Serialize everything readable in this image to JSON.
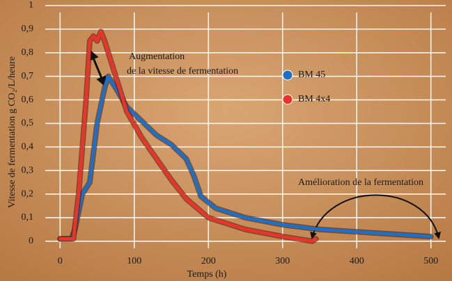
{
  "chart_data": {
    "type": "line",
    "y_label": "Vitesse de fermentation g CO₂/L/heure",
    "x_label": "Temps (h)",
    "xlim": [
      -20,
      520
    ],
    "ylim": [
      -0.03,
      1
    ],
    "xticks": [
      0,
      100,
      200,
      300,
      400,
      500
    ],
    "yticks": [
      0,
      {
        "value": 0.1,
        "label": "0,1"
      },
      {
        "value": 0.2,
        "label": "0,2"
      },
      {
        "value": 0.3,
        "label": "0,3"
      },
      {
        "value": 0.4,
        "label": "0,4"
      },
      {
        "value": 0.5,
        "label": "0,5"
      },
      {
        "value": 0.6,
        "label": "0,6"
      },
      {
        "value": 0.7,
        "label": "0,7"
      },
      {
        "value": 0.8,
        "label": "0,8"
      },
      {
        "value": 0.9,
        "label": "0,9"
      },
      1
    ],
    "grid": true,
    "series": [
      {
        "name": "BM 45",
        "color": "#1f6fc4",
        "x": [
          0,
          15,
          20,
          30,
          40,
          50,
          60,
          65,
          75,
          90,
          110,
          130,
          150,
          170,
          180,
          190,
          210,
          250,
          300,
          350,
          400,
          450,
          500
        ],
        "values": [
          0.01,
          0.01,
          0.05,
          0.2,
          0.25,
          0.5,
          0.65,
          0.7,
          0.65,
          0.57,
          0.51,
          0.45,
          0.41,
          0.35,
          0.28,
          0.19,
          0.14,
          0.1,
          0.07,
          0.05,
          0.04,
          0.03,
          0.02
        ]
      },
      {
        "name": "BM 4x4",
        "color": "#e8352b",
        "x": [
          0,
          18,
          25,
          35,
          40,
          45,
          50,
          55,
          60,
          75,
          90,
          110,
          130,
          150,
          170,
          200,
          250,
          300,
          340,
          345
        ],
        "values": [
          0.01,
          0.01,
          0.2,
          0.6,
          0.85,
          0.87,
          0.85,
          0.89,
          0.85,
          0.7,
          0.55,
          0.44,
          0.35,
          0.26,
          0.18,
          0.1,
          0.05,
          0.02,
          0.0,
          0.01
        ]
      }
    ],
    "annotations": [
      "Augmentation",
      "de la vitesse de fermentation",
      "Amélioration de la fermentation"
    ]
  }
}
